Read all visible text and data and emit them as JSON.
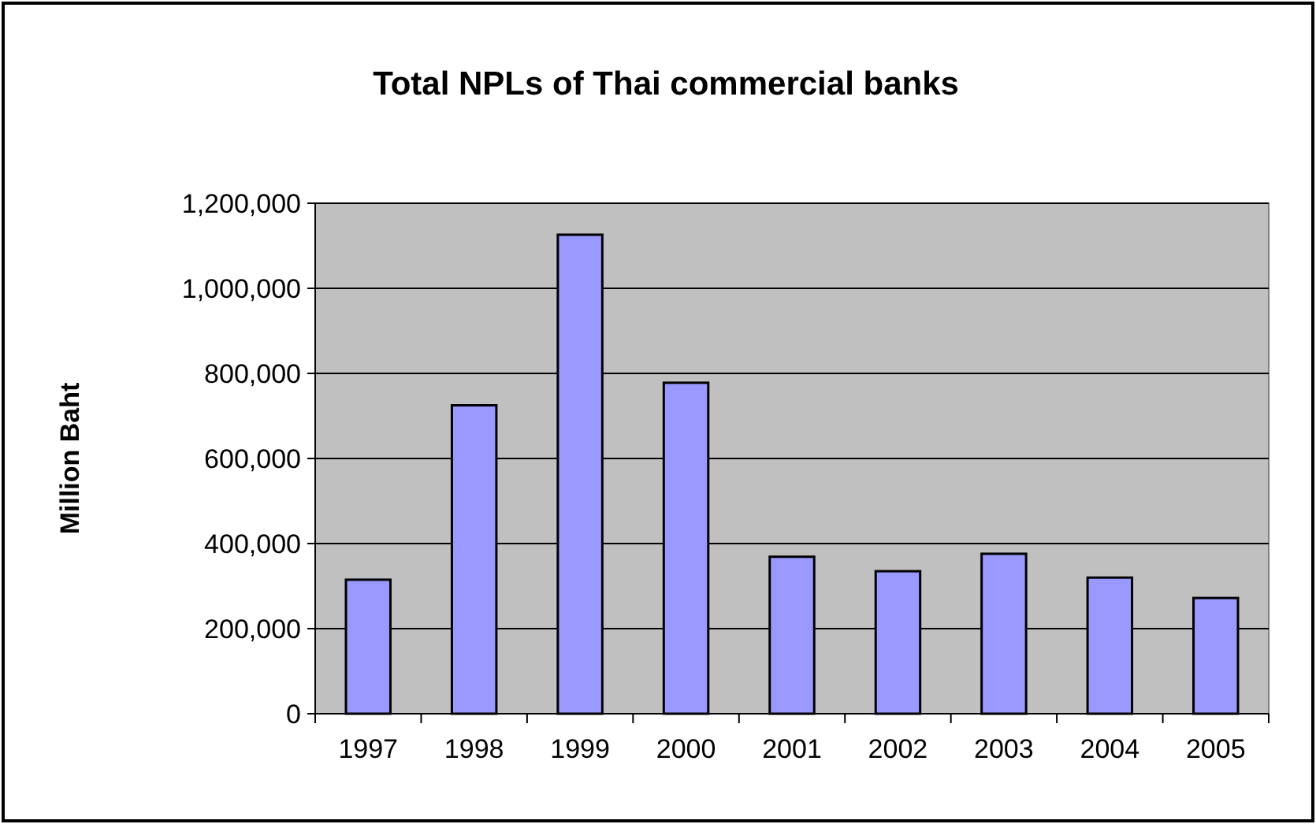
{
  "chart_data": {
    "type": "bar",
    "title": "Total NPLs of Thai commercial banks",
    "ylabel": "Million Baht",
    "categories": [
      "1997",
      "1998",
      "1999",
      "2000",
      "2001",
      "2002",
      "2003",
      "2004",
      "2005"
    ],
    "values": [
      315000,
      725000,
      1126000,
      778000,
      369000,
      335000,
      376000,
      320000,
      272000
    ],
    "color": "#9999ff",
    "ylim": [
      0,
      1200000
    ],
    "yticks": [
      {
        "value": 0,
        "label": "0"
      },
      {
        "value": 200000,
        "label": "200,000"
      },
      {
        "value": 400000,
        "label": "400,000"
      },
      {
        "value": 600000,
        "label": "600,000"
      },
      {
        "value": 800000,
        "label": "800,000"
      },
      {
        "value": 1000000,
        "label": "1,000,000"
      },
      {
        "value": 1200000,
        "label": "1,200,000"
      }
    ],
    "grid": "y"
  }
}
